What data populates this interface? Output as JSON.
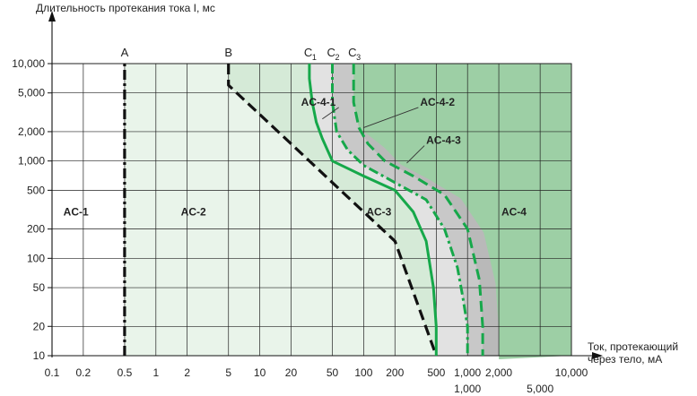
{
  "chart_data": {
    "type": "line",
    "title": "",
    "xlabel": "Ток, протекающий через тело, мА",
    "ylabel": "Длительность протекания тока I, мс",
    "x_scale": "log",
    "y_scale": "log",
    "xlim": [
      0.1,
      10000
    ],
    "ylim": [
      10,
      10000
    ],
    "grid": true,
    "x_ticks_main": [
      "0.1",
      "0.2",
      "0.5",
      "1",
      "2",
      "5",
      "10",
      "20",
      "50",
      "100",
      "200",
      "500",
      "1,000",
      "2,000",
      "10,000"
    ],
    "x_ticks_main_values": [
      0.1,
      0.2,
      0.5,
      1,
      2,
      5,
      10,
      20,
      50,
      100,
      200,
      500,
      1000,
      2000,
      10000
    ],
    "x_ticks_extra": [
      "1,000",
      "5,000"
    ],
    "x_ticks_extra_values": [
      1000,
      5000
    ],
    "y_ticks": [
      "10",
      "20",
      "50",
      "100",
      "200",
      "500",
      "1,000",
      "2,000",
      "5,000",
      "10,000"
    ],
    "y_ticks_values": [
      10,
      20,
      50,
      100,
      200,
      500,
      1000,
      2000,
      5000,
      10000
    ],
    "zones": [
      {
        "label": "AC-1",
        "x": 0.17,
        "y": 300
      },
      {
        "label": "AC-2",
        "x": 2.3,
        "y": 300
      },
      {
        "label": "AC-3",
        "x": 140,
        "y": 300
      },
      {
        "label": "AC-4",
        "x": 2800,
        "y": 300
      }
    ],
    "sub_zones": [
      {
        "label": "AC-4-1",
        "text_x": 25,
        "text_y": 3700,
        "arrow_x": 40,
        "arrow_y": 2700
      },
      {
        "label": "AC-4-2",
        "text_x": 350,
        "text_y": 3700,
        "arrow_x": 100,
        "arrow_y": 2200
      },
      {
        "label": "AC-4-3",
        "text_x": 400,
        "text_y": 1500,
        "arrow_x": 260,
        "arrow_y": 950
      }
    ],
    "series": [
      {
        "label": "A",
        "style": "dashdot",
        "color": "#111111",
        "x": [
          0.5,
          0.5
        ],
        "y": [
          10,
          10000
        ]
      },
      {
        "label": "B",
        "style": "dashed",
        "color": "#111111",
        "x": [
          5,
          5,
          10,
          20,
          50,
          100,
          200,
          500
        ],
        "y": [
          10000,
          6000,
          3000,
          1500,
          600,
          300,
          150,
          10
        ]
      },
      {
        "label": "C1",
        "label_base": "C",
        "label_sub": "1",
        "style": "solid",
        "color": "#16a84a",
        "x": [
          30,
          30,
          32,
          35,
          40,
          50,
          100,
          200,
          300,
          400,
          470,
          500,
          500
        ],
        "y": [
          10000,
          7000,
          4000,
          2500,
          1700,
          1000,
          700,
          500,
          300,
          150,
          50,
          20,
          10
        ]
      },
      {
        "label": "C2",
        "label_base": "C",
        "label_sub": "2",
        "style": "dashdot",
        "color": "#16a84a",
        "x": [
          50,
          50,
          55,
          70,
          100,
          200,
          400,
          600,
          800,
          900,
          1000,
          1000
        ],
        "y": [
          10000,
          4000,
          2000,
          1300,
          900,
          600,
          400,
          200,
          80,
          40,
          20,
          10
        ]
      },
      {
        "label": "C3",
        "label_base": "C",
        "label_sub": "3",
        "style": "dashed",
        "color": "#16a84a",
        "x": [
          80,
          80,
          90,
          110,
          160,
          300,
          600,
          1000,
          1300,
          1400,
          1400
        ],
        "y": [
          10000,
          4000,
          2200,
          1500,
          1000,
          700,
          450,
          200,
          60,
          20,
          10
        ]
      }
    ],
    "colors": {
      "ac1": "#ffffff",
      "ac2": "#e9f4ea",
      "ac3": "#d5ead7",
      "ac41": "#e2e2e2",
      "ac42": "#c8c8c8",
      "ac43": "#b9b9b9",
      "ac4": "#9dcfa5",
      "curve_green": "#16a84a",
      "dark": "#111111",
      "grid": "#222222"
    }
  }
}
